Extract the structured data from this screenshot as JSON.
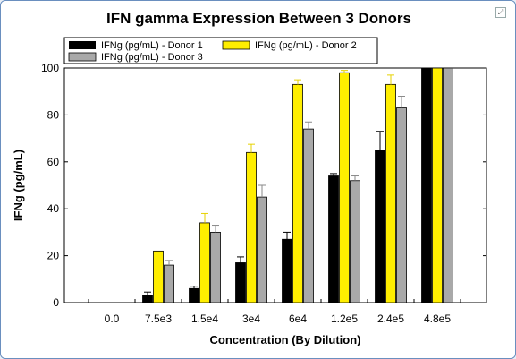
{
  "window": {
    "expand_icon": "expand-icon"
  },
  "chart_data": {
    "type": "bar",
    "title": "IFN gamma Expression Between 3 Donors",
    "xlabel": "Concentration (By Dilution)",
    "ylabel": "IFNg (pg/mL)",
    "ylim": [
      0,
      100
    ],
    "yticks": [
      0,
      20,
      40,
      60,
      80,
      100
    ],
    "grid": false,
    "legend_position": "top",
    "categories": [
      "0.0",
      "7.5e3",
      "1.5e4",
      "3e4",
      "6e4",
      "1.2e5",
      "2.4e5",
      "4.8e5"
    ],
    "series": [
      {
        "name": "IFNg (pg/mL) - Donor 1",
        "color": "#000000",
        "values": [
          0,
          3,
          6,
          17,
          27,
          54,
          65,
          100
        ],
        "errors": [
          0,
          1.5,
          1,
          2.5,
          3,
          1,
          8,
          0
        ]
      },
      {
        "name": "IFNg (pg/mL) - Donor 2",
        "color": "#ffee00",
        "values": [
          0,
          22,
          34,
          64,
          93,
          98,
          93,
          100
        ],
        "errors": [
          0,
          0,
          4,
          3.5,
          2,
          1,
          4,
          0
        ]
      },
      {
        "name": "IFNg (pg/mL) - Donor 3",
        "color": "#a9a9a9",
        "values": [
          0,
          16,
          30,
          45,
          74,
          52,
          83,
          100
        ],
        "errors": [
          0,
          2,
          3,
          5,
          3,
          2,
          5,
          0
        ]
      }
    ]
  }
}
